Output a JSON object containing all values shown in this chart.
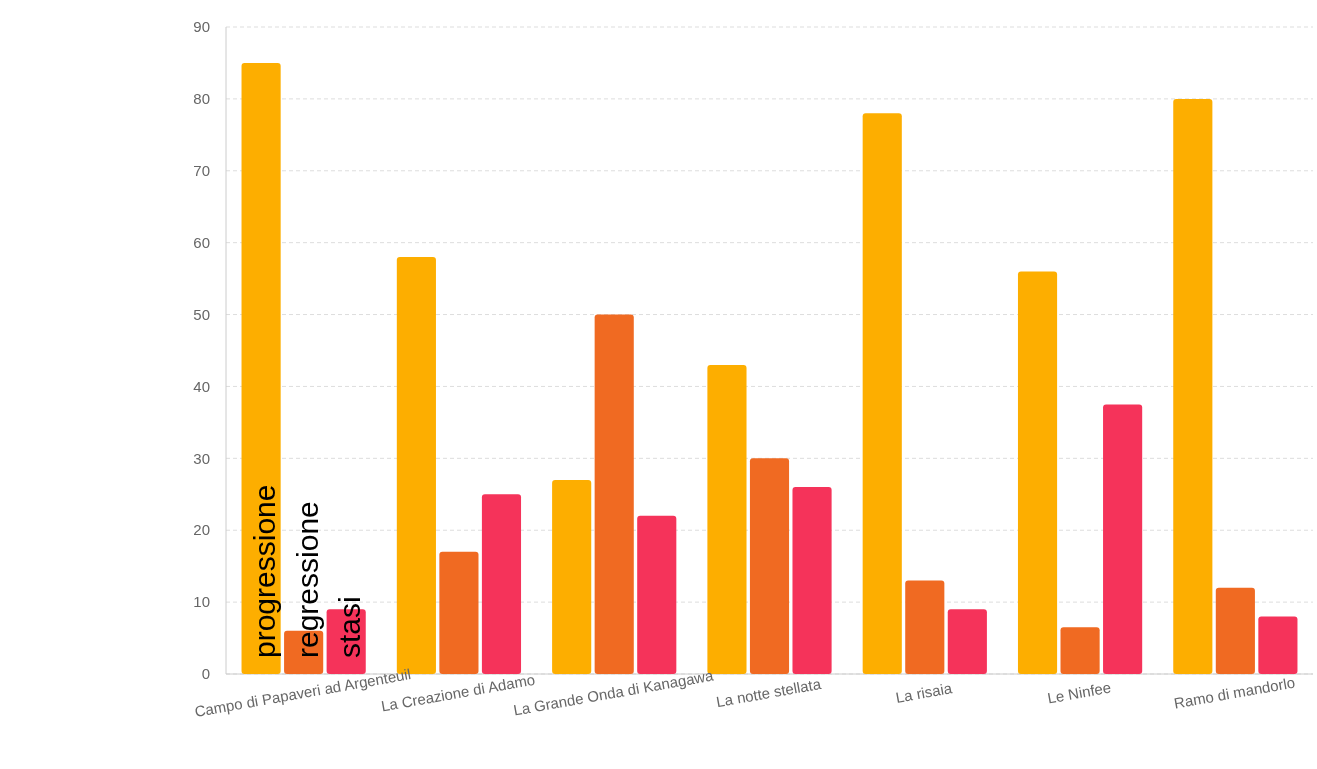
{
  "chart_data": {
    "type": "bar",
    "categories": [
      "Campo di Papaveri ad Argenteuil",
      "La Creazione di Adamo",
      "La Grande Onda di Kanagawa",
      "La notte stellata",
      "La risaia",
      "Le Ninfee",
      "Ramo di mandorlo"
    ],
    "series": [
      {
        "name": "progressione",
        "color": "#fdae00",
        "values": [
          85,
          58,
          27,
          43,
          78,
          56,
          80
        ]
      },
      {
        "name": "regressione",
        "color": "#f06a22",
        "values": [
          6,
          17,
          50,
          30,
          13,
          6.5,
          12
        ]
      },
      {
        "name": "stasi",
        "color": "#f5335a",
        "values": [
          9,
          25,
          22,
          26,
          9,
          37.5,
          8
        ]
      }
    ],
    "ylim": [
      0,
      90
    ],
    "yticks": [
      0,
      10,
      20,
      30,
      40,
      50,
      60,
      70,
      80,
      90
    ],
    "grid": "y"
  }
}
